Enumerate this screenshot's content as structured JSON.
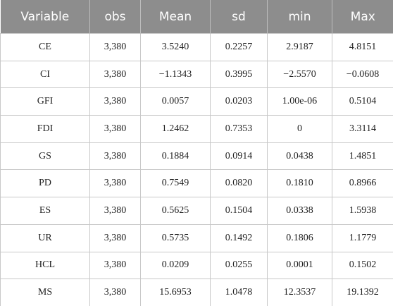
{
  "table": {
    "header": [
      "Variable",
      "obs",
      "Mean",
      "sd",
      "min",
      "Max"
    ],
    "rows": [
      [
        "CE",
        "3,380",
        "3.5240",
        "0.2257",
        "2.9187",
        "4.8151"
      ],
      [
        "CI",
        "3,380",
        "−1.1343",
        "0.3995",
        "−2.5570",
        "−0.0608"
      ],
      [
        "GFI",
        "3,380",
        "0.0057",
        "0.0203",
        "1.00e-06",
        "0.5104"
      ],
      [
        "FDI",
        "3,380",
        "1.2462",
        "0.7353",
        "0",
        "3.3114"
      ],
      [
        "GS",
        "3,380",
        "0.1884",
        "0.0914",
        "0.0438",
        "1.4851"
      ],
      [
        "PD",
        "3,380",
        "0.7549",
        "0.0820",
        "0.1810",
        "0.8966"
      ],
      [
        "ES",
        "3,380",
        "0.5625",
        "0.1504",
        "0.0338",
        "1.5938"
      ],
      [
        "UR",
        "3,380",
        "0.5735",
        "0.1492",
        "0.1806",
        "1.1779"
      ],
      [
        "HCL",
        "3,380",
        "0.0209",
        "0.0255",
        "0.0001",
        "0.1502"
      ],
      [
        "MS",
        "3,380",
        "15.6953",
        "1.0478",
        "12.3537",
        "19.1392"
      ]
    ]
  }
}
